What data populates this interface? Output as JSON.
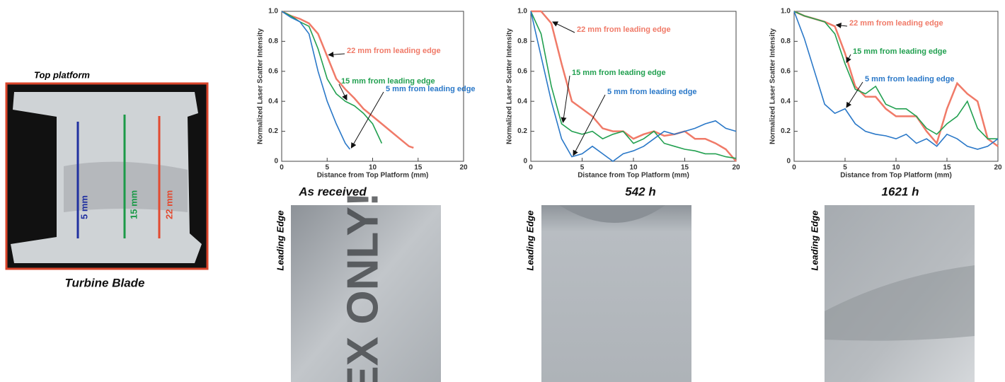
{
  "blade": {
    "label": "Top platform",
    "caption": "Turbine Blade",
    "lines": [
      "5 mm",
      "15 mm",
      "22 mm"
    ]
  },
  "panels": [
    {
      "caption": "As received",
      "image_label": "Leading Edge",
      "photo_text": "EX ONLY!"
    },
    {
      "caption": "542 h",
      "image_label": "Leading Edge"
    },
    {
      "caption": "1621 h",
      "image_label": "Leading Edge"
    }
  ],
  "chart_data": [
    {
      "type": "line",
      "xlabel": "Distance from Top Platform (mm)",
      "ylabel": "Normalized Laser Scatter Intensity",
      "xlim": [
        0,
        20
      ],
      "xticks": [
        0,
        5,
        10,
        15,
        20
      ],
      "ylim": [
        0,
        1
      ],
      "yticks": [
        0,
        0.2,
        0.4,
        0.6,
        0.8,
        {
          "value": 1,
          "label": "1.0"
        }
      ],
      "series": [
        {
          "name": "22 mm from leading edge",
          "color": "#f07a68",
          "x": [
            0,
            1,
            2,
            3,
            4,
            5,
            6,
            7,
            8,
            9,
            10,
            11,
            12,
            13,
            14,
            14.5
          ],
          "values": [
            1.0,
            0.97,
            0.95,
            0.92,
            0.85,
            0.7,
            0.55,
            0.48,
            0.42,
            0.35,
            0.3,
            0.25,
            0.2,
            0.15,
            0.1,
            0.09
          ]
        },
        {
          "name": "15 mm from leading edge",
          "color": "#22a050",
          "x": [
            0,
            1,
            2,
            3,
            4,
            5,
            6,
            7,
            8,
            9,
            10,
            11
          ],
          "values": [
            1.0,
            0.97,
            0.93,
            0.9,
            0.75,
            0.55,
            0.45,
            0.4,
            0.37,
            0.32,
            0.25,
            0.12
          ]
        },
        {
          "name": "5 mm from leading edge",
          "color": "#2a78c8",
          "x": [
            0,
            1,
            2,
            3,
            4,
            5,
            6,
            7,
            7.5
          ],
          "values": [
            1.0,
            0.96,
            0.93,
            0.85,
            0.6,
            0.4,
            0.25,
            0.12,
            0.08
          ]
        }
      ]
    },
    {
      "type": "line",
      "xlabel": "Distance from Top Platform (mm)",
      "ylabel": "Normalized Laser Scatter Intensity",
      "xlim": [
        0,
        20
      ],
      "xticks": [
        0,
        5,
        10,
        15,
        20
      ],
      "ylim": [
        0,
        1
      ],
      "yticks": [
        0,
        0.2,
        0.4,
        0.6,
        0.8,
        {
          "value": 1,
          "label": "1.0"
        }
      ],
      "series": [
        {
          "name": "22 mm from leading edge",
          "color": "#f07a68",
          "x": [
            0,
            1,
            2,
            3,
            4,
            5,
            6,
            7,
            8,
            9,
            10,
            11,
            12,
            13,
            14,
            15,
            16,
            17,
            18,
            19,
            20
          ],
          "values": [
            1.0,
            1.0,
            0.92,
            0.65,
            0.4,
            0.35,
            0.3,
            0.22,
            0.2,
            0.2,
            0.15,
            0.18,
            0.2,
            0.17,
            0.18,
            0.2,
            0.15,
            0.15,
            0.12,
            0.08,
            0.0
          ]
        },
        {
          "name": "15 mm from leading edge",
          "color": "#22a050",
          "x": [
            0,
            1,
            2,
            3,
            4,
            5,
            6,
            7,
            8,
            9,
            10,
            11,
            12,
            13,
            14,
            15,
            16,
            17,
            18,
            19,
            20
          ],
          "values": [
            1.0,
            0.85,
            0.5,
            0.25,
            0.2,
            0.18,
            0.2,
            0.15,
            0.18,
            0.2,
            0.12,
            0.15,
            0.2,
            0.12,
            0.1,
            0.08,
            0.07,
            0.05,
            0.05,
            0.03,
            0.02
          ]
        },
        {
          "name": "5 mm from leading edge",
          "color": "#2a78c8",
          "x": [
            0,
            1,
            2,
            3,
            4,
            5,
            6,
            7,
            8,
            9,
            10,
            11,
            12,
            13,
            14,
            15,
            16,
            17,
            18,
            19,
            20
          ],
          "values": [
            1.0,
            0.7,
            0.4,
            0.15,
            0.03,
            0.05,
            0.1,
            0.05,
            0.0,
            0.05,
            0.07,
            0.1,
            0.15,
            0.2,
            0.18,
            0.2,
            0.22,
            0.25,
            0.27,
            0.22,
            0.2
          ]
        }
      ]
    },
    {
      "type": "line",
      "xlabel": "Distance from Top Platform (mm)",
      "ylabel": "Normalized Laser Scatter Intensity",
      "xlim": [
        0,
        20
      ],
      "xticks": [
        0,
        5,
        10,
        15,
        20
      ],
      "ylim": [
        0,
        1
      ],
      "yticks": [
        0,
        0.2,
        0.4,
        0.6,
        0.8,
        {
          "value": 1,
          "label": "1.0"
        }
      ],
      "series": [
        {
          "name": "22 mm from leading edge",
          "color": "#f07a68",
          "x": [
            0,
            1,
            2,
            3,
            4,
            5,
            6,
            7,
            8,
            9,
            10,
            11,
            12,
            13,
            14,
            15,
            16,
            17,
            18,
            19,
            20
          ],
          "values": [
            1.0,
            0.97,
            0.95,
            0.93,
            0.9,
            0.72,
            0.5,
            0.43,
            0.43,
            0.35,
            0.3,
            0.3,
            0.3,
            0.2,
            0.12,
            0.35,
            0.52,
            0.45,
            0.4,
            0.15,
            0.1
          ]
        },
        {
          "name": "15 mm from leading edge",
          "color": "#22a050",
          "x": [
            0,
            1,
            2,
            3,
            4,
            5,
            6,
            7,
            8,
            9,
            10,
            11,
            12,
            13,
            14,
            15,
            16,
            17,
            18,
            19,
            20
          ],
          "values": [
            1.0,
            0.97,
            0.95,
            0.93,
            0.85,
            0.65,
            0.48,
            0.45,
            0.5,
            0.38,
            0.35,
            0.35,
            0.3,
            0.22,
            0.18,
            0.25,
            0.3,
            0.4,
            0.22,
            0.15,
            0.15
          ]
        },
        {
          "name": "5 mm from leading edge",
          "color": "#2a78c8",
          "x": [
            0,
            1,
            2,
            3,
            4,
            5,
            6,
            7,
            8,
            9,
            10,
            11,
            12,
            13,
            14,
            15,
            16,
            17,
            18,
            19,
            20
          ],
          "values": [
            1.0,
            0.82,
            0.6,
            0.38,
            0.32,
            0.35,
            0.25,
            0.2,
            0.18,
            0.17,
            0.15,
            0.18,
            0.12,
            0.15,
            0.1,
            0.18,
            0.15,
            0.1,
            0.08,
            0.1,
            0.15
          ]
        }
      ]
    }
  ]
}
